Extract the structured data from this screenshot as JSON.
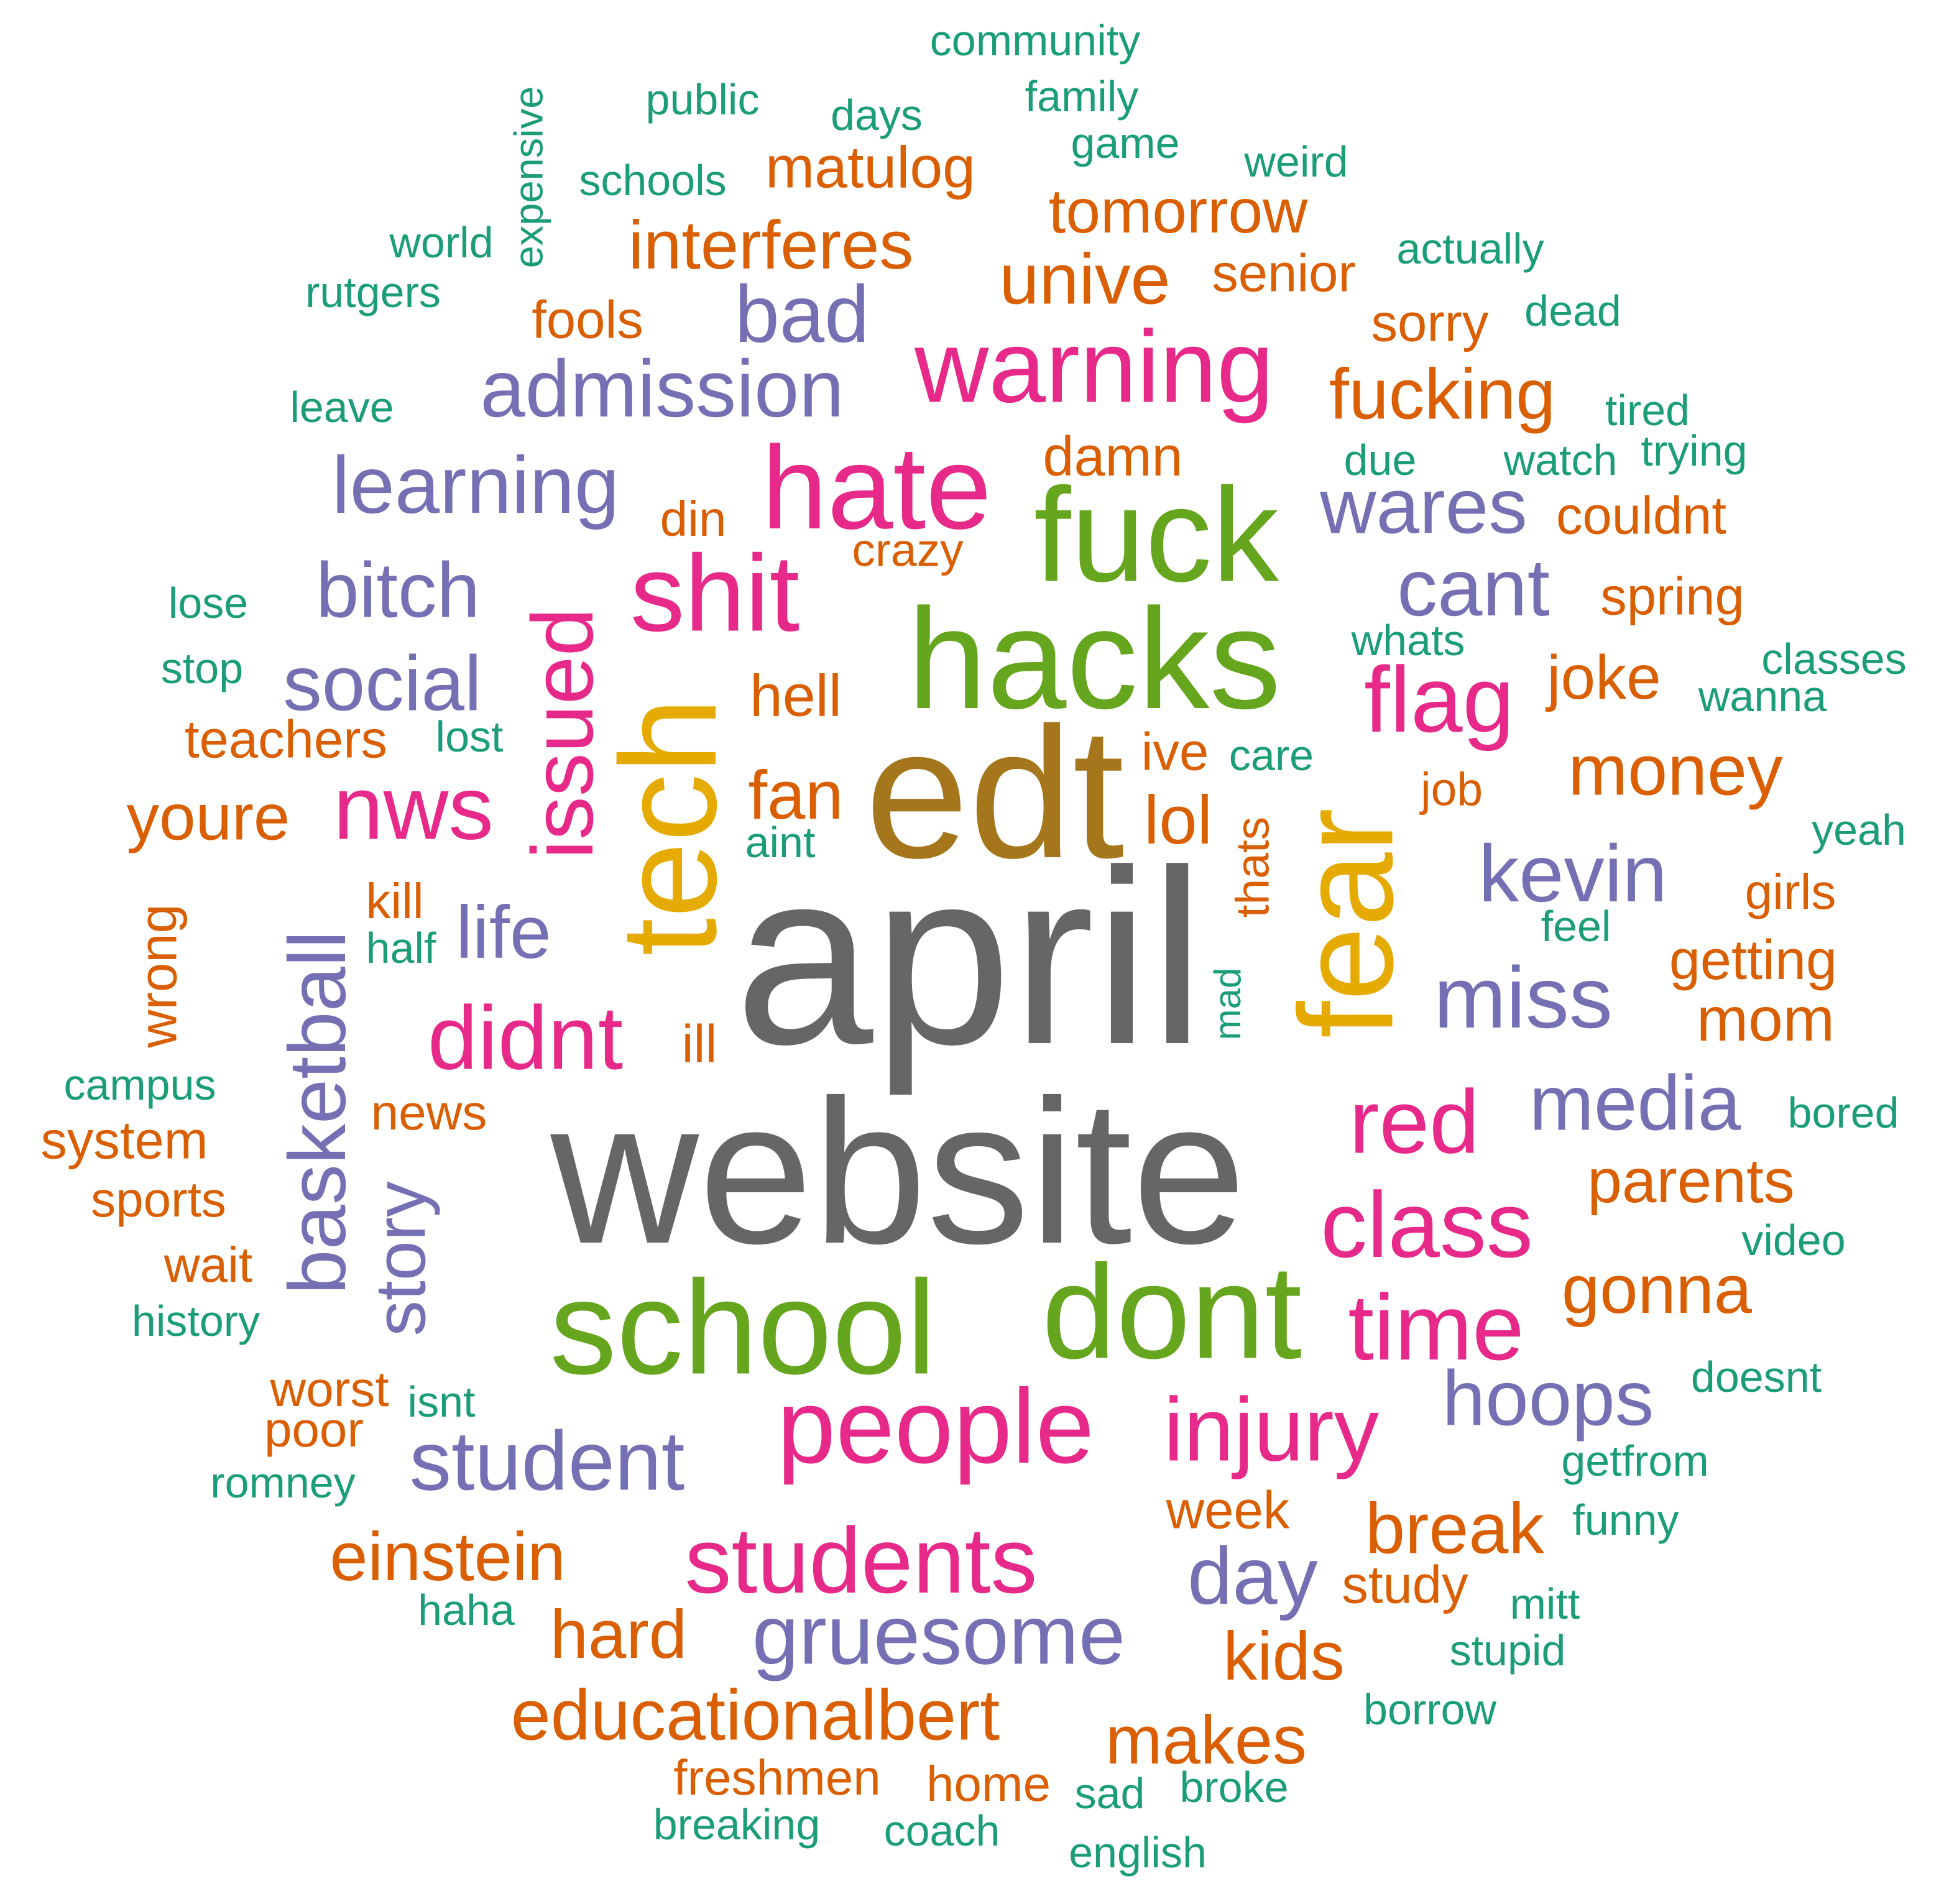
{
  "palette": {
    "gray": "#666666",
    "olive": "#A6761D",
    "green": "#66A61E",
    "yellow": "#E6AB02",
    "magenta": "#E7298A",
    "purple": "#7570B3",
    "orange": "#D95F02",
    "teal": "#1B9E77"
  },
  "words": [
    {
      "text": "april",
      "color": "gray",
      "weight": 40
    },
    {
      "text": "website",
      "color": "gray",
      "weight": 38
    },
    {
      "text": "edt",
      "color": "olive",
      "weight": 33
    },
    {
      "text": "hacks",
      "color": "green",
      "weight": 26
    },
    {
      "text": "school",
      "color": "green",
      "weight": 24
    },
    {
      "text": "dont",
      "color": "green",
      "weight": 24
    },
    {
      "text": "fuck",
      "color": "green",
      "weight": 24
    },
    {
      "text": "tech",
      "color": "yellow",
      "weight": 26
    },
    {
      "text": "fear",
      "color": "yellow",
      "weight": 24
    },
    {
      "text": "hate",
      "color": "magenta",
      "weight": 20
    },
    {
      "text": "shit",
      "color": "magenta",
      "weight": 19
    },
    {
      "text": "warning",
      "color": "magenta",
      "weight": 17
    },
    {
      "text": "people",
      "color": "magenta",
      "weight": 18
    },
    {
      "text": "students",
      "color": "magenta",
      "weight": 16
    },
    {
      "text": "flag",
      "color": "magenta",
      "weight": 16
    },
    {
      "text": "nws",
      "color": "magenta",
      "weight": 16
    },
    {
      "text": "issued",
      "color": "magenta",
      "weight": 16
    },
    {
      "text": "didnt",
      "color": "magenta",
      "weight": 16
    },
    {
      "text": "red",
      "color": "magenta",
      "weight": 16
    },
    {
      "text": "class",
      "color": "magenta",
      "weight": 16
    },
    {
      "text": "time",
      "color": "magenta",
      "weight": 16
    },
    {
      "text": "injury",
      "color": "magenta",
      "weight": 16
    },
    {
      "text": "admission",
      "color": "purple",
      "weight": 13
    },
    {
      "text": "learning",
      "color": "purple",
      "weight": 13
    },
    {
      "text": "bad",
      "color": "purple",
      "weight": 13
    },
    {
      "text": "bitch",
      "color": "purple",
      "weight": 13
    },
    {
      "text": "social",
      "color": "purple",
      "weight": 13
    },
    {
      "text": "wares",
      "color": "purple",
      "weight": 13
    },
    {
      "text": "cant",
      "color": "purple",
      "weight": 13
    },
    {
      "text": "kevin",
      "color": "purple",
      "weight": 13
    },
    {
      "text": "miss",
      "color": "purple",
      "weight": 14
    },
    {
      "text": "media",
      "color": "purple",
      "weight": 13
    },
    {
      "text": "basketball",
      "color": "purple",
      "weight": 13
    },
    {
      "text": "story",
      "color": "purple",
      "weight": 12
    },
    {
      "text": "life",
      "color": "purple",
      "weight": 12
    },
    {
      "text": "student",
      "color": "purple",
      "weight": 14
    },
    {
      "text": "gruesome",
      "color": "purple",
      "weight": 14
    },
    {
      "text": "hoops",
      "color": "purple",
      "weight": 13
    },
    {
      "text": "day",
      "color": "purple",
      "weight": 13
    },
    {
      "text": "interferes",
      "color": "orange",
      "weight": 10
    },
    {
      "text": "matulog",
      "color": "orange",
      "weight": 9
    },
    {
      "text": "tomorrow",
      "color": "orange",
      "weight": 9
    },
    {
      "text": "unive",
      "color": "orange",
      "weight": 10
    },
    {
      "text": "senior",
      "color": "orange",
      "weight": 8
    },
    {
      "text": "fools",
      "color": "orange",
      "weight": 8
    },
    {
      "text": "sorry",
      "color": "orange",
      "weight": 8
    },
    {
      "text": "fucking",
      "color": "orange",
      "weight": 10
    },
    {
      "text": "damn",
      "color": "orange",
      "weight": 8
    },
    {
      "text": "din",
      "color": "orange",
      "weight": 8
    },
    {
      "text": "crazy",
      "color": "orange",
      "weight": 7
    },
    {
      "text": "couldnt",
      "color": "orange",
      "weight": 8
    },
    {
      "text": "spring",
      "color": "orange",
      "weight": 8
    },
    {
      "text": "joke",
      "color": "orange",
      "weight": 9
    },
    {
      "text": "hell",
      "color": "orange",
      "weight": 8
    },
    {
      "text": "teachers",
      "color": "orange",
      "weight": 8
    },
    {
      "text": "fan",
      "color": "orange",
      "weight": 10
    },
    {
      "text": "ive",
      "color": "orange",
      "weight": 8
    },
    {
      "text": "money",
      "color": "orange",
      "weight": 10
    },
    {
      "text": "lol",
      "color": "orange",
      "weight": 10
    },
    {
      "text": "youre",
      "color": "orange",
      "weight": 10
    },
    {
      "text": "job",
      "color": "orange",
      "weight": 7
    },
    {
      "text": "kill",
      "color": "orange",
      "weight": 8
    },
    {
      "text": "thats",
      "color": "orange",
      "weight": 7
    },
    {
      "text": "girls",
      "color": "orange",
      "weight": 7
    },
    {
      "text": "wrong",
      "color": "orange",
      "weight": 8
    },
    {
      "text": "getting",
      "color": "orange",
      "weight": 8
    },
    {
      "text": "mom",
      "color": "orange",
      "weight": 9
    },
    {
      "text": "ill",
      "color": "orange",
      "weight": 8
    },
    {
      "text": "news",
      "color": "orange",
      "weight": 8
    },
    {
      "text": "system",
      "color": "orange",
      "weight": 8
    },
    {
      "text": "sports",
      "color": "orange",
      "weight": 8
    },
    {
      "text": "parents",
      "color": "orange",
      "weight": 9
    },
    {
      "text": "wait",
      "color": "orange",
      "weight": 8
    },
    {
      "text": "gonna",
      "color": "orange",
      "weight": 9
    },
    {
      "text": "worst",
      "color": "orange",
      "weight": 8
    },
    {
      "text": "poor",
      "color": "orange",
      "weight": 8
    },
    {
      "text": "einstein",
      "color": "orange",
      "weight": 10
    },
    {
      "text": "week",
      "color": "orange",
      "weight": 8
    },
    {
      "text": "break",
      "color": "orange",
      "weight": 10
    },
    {
      "text": "study",
      "color": "orange",
      "weight": 8
    },
    {
      "text": "hard",
      "color": "orange",
      "weight": 10
    },
    {
      "text": "kids",
      "color": "orange",
      "weight": 10
    },
    {
      "text": "educationalbert",
      "color": "orange",
      "weight": 11
    },
    {
      "text": "makes",
      "color": "orange",
      "weight": 10
    },
    {
      "text": "freshmen",
      "color": "orange",
      "weight": 8
    },
    {
      "text": "home",
      "color": "orange",
      "weight": 8
    },
    {
      "text": "community",
      "color": "teal",
      "weight": 6
    },
    {
      "text": "public",
      "color": "teal",
      "weight": 6
    },
    {
      "text": "family",
      "color": "teal",
      "weight": 6
    },
    {
      "text": "days",
      "color": "teal",
      "weight": 6
    },
    {
      "text": "expensive",
      "color": "teal",
      "weight": 6
    },
    {
      "text": "game",
      "color": "teal",
      "weight": 6
    },
    {
      "text": "schools",
      "color": "teal",
      "weight": 6
    },
    {
      "text": "weird",
      "color": "teal",
      "weight": 6
    },
    {
      "text": "world",
      "color": "teal",
      "weight": 6
    },
    {
      "text": "actually",
      "color": "teal",
      "weight": 6
    },
    {
      "text": "rutgers",
      "color": "teal",
      "weight": 6
    },
    {
      "text": "dead",
      "color": "teal",
      "weight": 6
    },
    {
      "text": "leave",
      "color": "teal",
      "weight": 6
    },
    {
      "text": "tired",
      "color": "teal",
      "weight": 6
    },
    {
      "text": "due",
      "color": "teal",
      "weight": 6
    },
    {
      "text": "watch",
      "color": "teal",
      "weight": 6
    },
    {
      "text": "trying",
      "color": "teal",
      "weight": 6
    },
    {
      "text": "lose",
      "color": "teal",
      "weight": 6
    },
    {
      "text": "whats",
      "color": "teal",
      "weight": 6
    },
    {
      "text": "classes",
      "color": "teal",
      "weight": 6
    },
    {
      "text": "stop",
      "color": "teal",
      "weight": 6
    },
    {
      "text": "wanna",
      "color": "teal",
      "weight": 6
    },
    {
      "text": "lost",
      "color": "teal",
      "weight": 6
    },
    {
      "text": "care",
      "color": "teal",
      "weight": 6
    },
    {
      "text": "aint",
      "color": "teal",
      "weight": 6
    },
    {
      "text": "yeah",
      "color": "teal",
      "weight": 6
    },
    {
      "text": "half",
      "color": "teal",
      "weight": 6
    },
    {
      "text": "feel",
      "color": "teal",
      "weight": 6
    },
    {
      "text": "mad",
      "color": "teal",
      "weight": 6
    },
    {
      "text": "campus",
      "color": "teal",
      "weight": 6
    },
    {
      "text": "bored",
      "color": "teal",
      "weight": 6
    },
    {
      "text": "video",
      "color": "teal",
      "weight": 6
    },
    {
      "text": "history",
      "color": "teal",
      "weight": 6
    },
    {
      "text": "doesnt",
      "color": "teal",
      "weight": 6
    },
    {
      "text": "isnt",
      "color": "teal",
      "weight": 6
    },
    {
      "text": "getfrom",
      "color": "teal",
      "weight": 6
    },
    {
      "text": "romney",
      "color": "teal",
      "weight": 6
    },
    {
      "text": "funny",
      "color": "teal",
      "weight": 6
    },
    {
      "text": "haha",
      "color": "teal",
      "weight": 6
    },
    {
      "text": "mitt",
      "color": "teal",
      "weight": 6
    },
    {
      "text": "stupid",
      "color": "teal",
      "weight": 6
    },
    {
      "text": "borrow",
      "color": "teal",
      "weight": 6
    },
    {
      "text": "sad",
      "color": "teal",
      "weight": 6
    },
    {
      "text": "broke",
      "color": "teal",
      "weight": 6
    },
    {
      "text": "breaking",
      "color": "teal",
      "weight": 6
    },
    {
      "text": "coach",
      "color": "teal",
      "weight": 6
    },
    {
      "text": "english",
      "color": "teal",
      "weight": 6
    }
  ]
}
